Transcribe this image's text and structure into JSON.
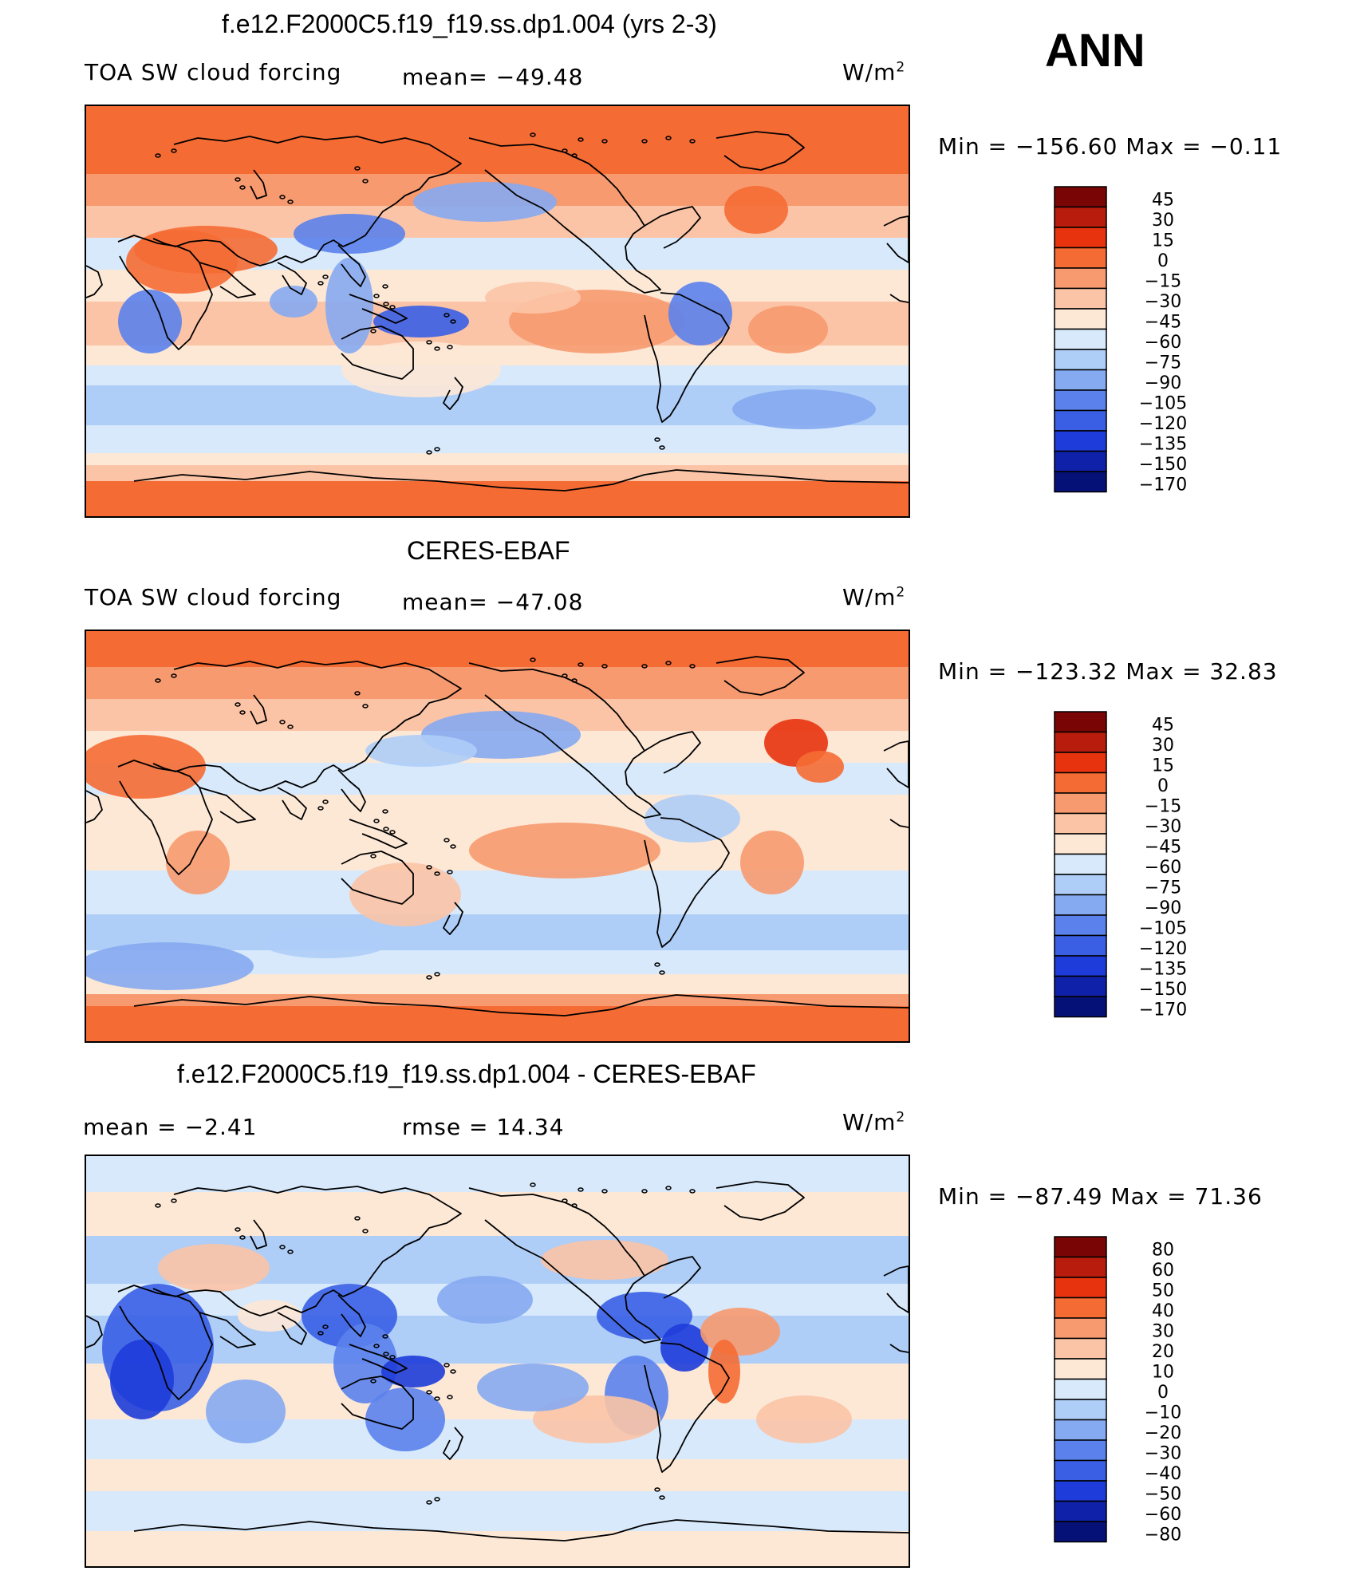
{
  "season": "ANN",
  "colors": {
    "abs_scale": [
      "#7a0505",
      "#b81c0c",
      "#e8330f",
      "#f56b34",
      "#f79a6f",
      "#fbc4a6",
      "#fde8d6",
      "#d7e9fb",
      "#aecdf7",
      "#86aaf1",
      "#5b82ec",
      "#3a5fe5",
      "#1e3cd9",
      "#1021a9",
      "#061178"
    ],
    "diff_scale": [
      "#7a0505",
      "#b81c0c",
      "#e8330f",
      "#f56b34",
      "#f79a6f",
      "#fbc4a6",
      "#fde8d6",
      "#d7e9fb",
      "#aecdf7",
      "#86aaf1",
      "#5b82ec",
      "#3a5fe5",
      "#1e3cd9",
      "#1021a9",
      "#061178"
    ]
  },
  "panels": [
    {
      "id": "model",
      "title": "f.e12.F2000C5.f19_f19.ss.dp1.004 (yrs 2-3)",
      "left_label": "TOA SW cloud forcing",
      "stat": "mean=  −49.48",
      "units": "W/m",
      "units_sup": "2",
      "minmax": "Min  =  −156.60  Max  =    −0.11",
      "levels": [
        "45",
        "30",
        "15",
        "0",
        "−15",
        "−30",
        "−45",
        "−60",
        "−75",
        "−90",
        "−105",
        "−120",
        "−135",
        "−150",
        "−170"
      ]
    },
    {
      "id": "obs",
      "title": "CERES-EBAF",
      "left_label": "TOA SW cloud forcing",
      "stat": "mean=  −47.08",
      "units": "W/m",
      "units_sup": "2",
      "minmax": "Min  =  −123.32  Max  =    32.83",
      "levels": [
        "45",
        "30",
        "15",
        "0",
        "−15",
        "−30",
        "−45",
        "−60",
        "−75",
        "−90",
        "−105",
        "−120",
        "−135",
        "−150",
        "−170"
      ]
    },
    {
      "id": "diff",
      "title": "f.e12.F2000C5.f19_f19.ss.dp1.004 - CERES-EBAF",
      "left_label": "mean  =    −2.41",
      "stat": "rmse  =    14.34",
      "units": "W/m",
      "units_sup": "2",
      "minmax": "Min  =  −87.49  Max  =    71.36",
      "levels": [
        "80",
        "60",
        "50",
        "40",
        "30",
        "20",
        "10",
        "0",
        "−10",
        "−20",
        "−30",
        "−40",
        "−50",
        "−60",
        "−80"
      ]
    }
  ],
  "chart_data": [
    {
      "type": "heatmap",
      "title": "f.e12.F2000C5.f19_f19.ss.dp1.004 (yrs 2-3)",
      "variable": "TOA SW cloud forcing",
      "units": "W/m2",
      "mean": -49.48,
      "min": -156.6,
      "max": -0.11,
      "contour_levels": [
        -170,
        -150,
        -135,
        -120,
        -105,
        -90,
        -75,
        -60,
        -45,
        -30,
        -15,
        0,
        15,
        30,
        45
      ]
    },
    {
      "type": "heatmap",
      "title": "CERES-EBAF",
      "variable": "TOA SW cloud forcing",
      "units": "W/m2",
      "mean": -47.08,
      "min": -123.32,
      "max": 32.83,
      "contour_levels": [
        -170,
        -150,
        -135,
        -120,
        -105,
        -90,
        -75,
        -60,
        -45,
        -30,
        -15,
        0,
        15,
        30,
        45
      ]
    },
    {
      "type": "heatmap",
      "title": "f.e12.F2000C5.f19_f19.ss.dp1.004 - CERES-EBAF",
      "units": "W/m2",
      "mean": -2.41,
      "rmse": 14.34,
      "min": -87.49,
      "max": 71.36,
      "contour_levels": [
        -80,
        -60,
        -50,
        -40,
        -30,
        -20,
        -10,
        0,
        10,
        20,
        30,
        40,
        50,
        60,
        80
      ]
    }
  ]
}
